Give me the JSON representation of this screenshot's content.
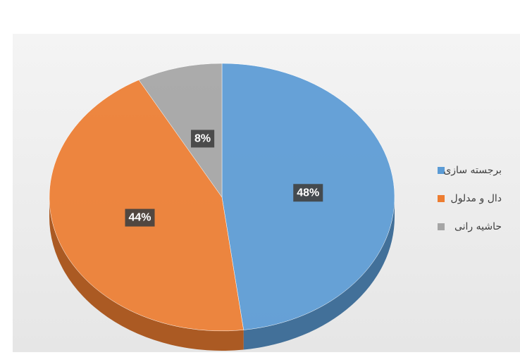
{
  "chart_data": {
    "type": "pie",
    "categories": [
      "برجسته سازی",
      "دال و مدلول",
      "حاشیه رانی"
    ],
    "values": [
      48,
      44,
      8
    ],
    "value_labels": [
      "48%",
      "44%",
      "8%"
    ],
    "colors": [
      "#5b9bd5",
      "#ed7d31",
      "#a5a5a5"
    ]
  }
}
